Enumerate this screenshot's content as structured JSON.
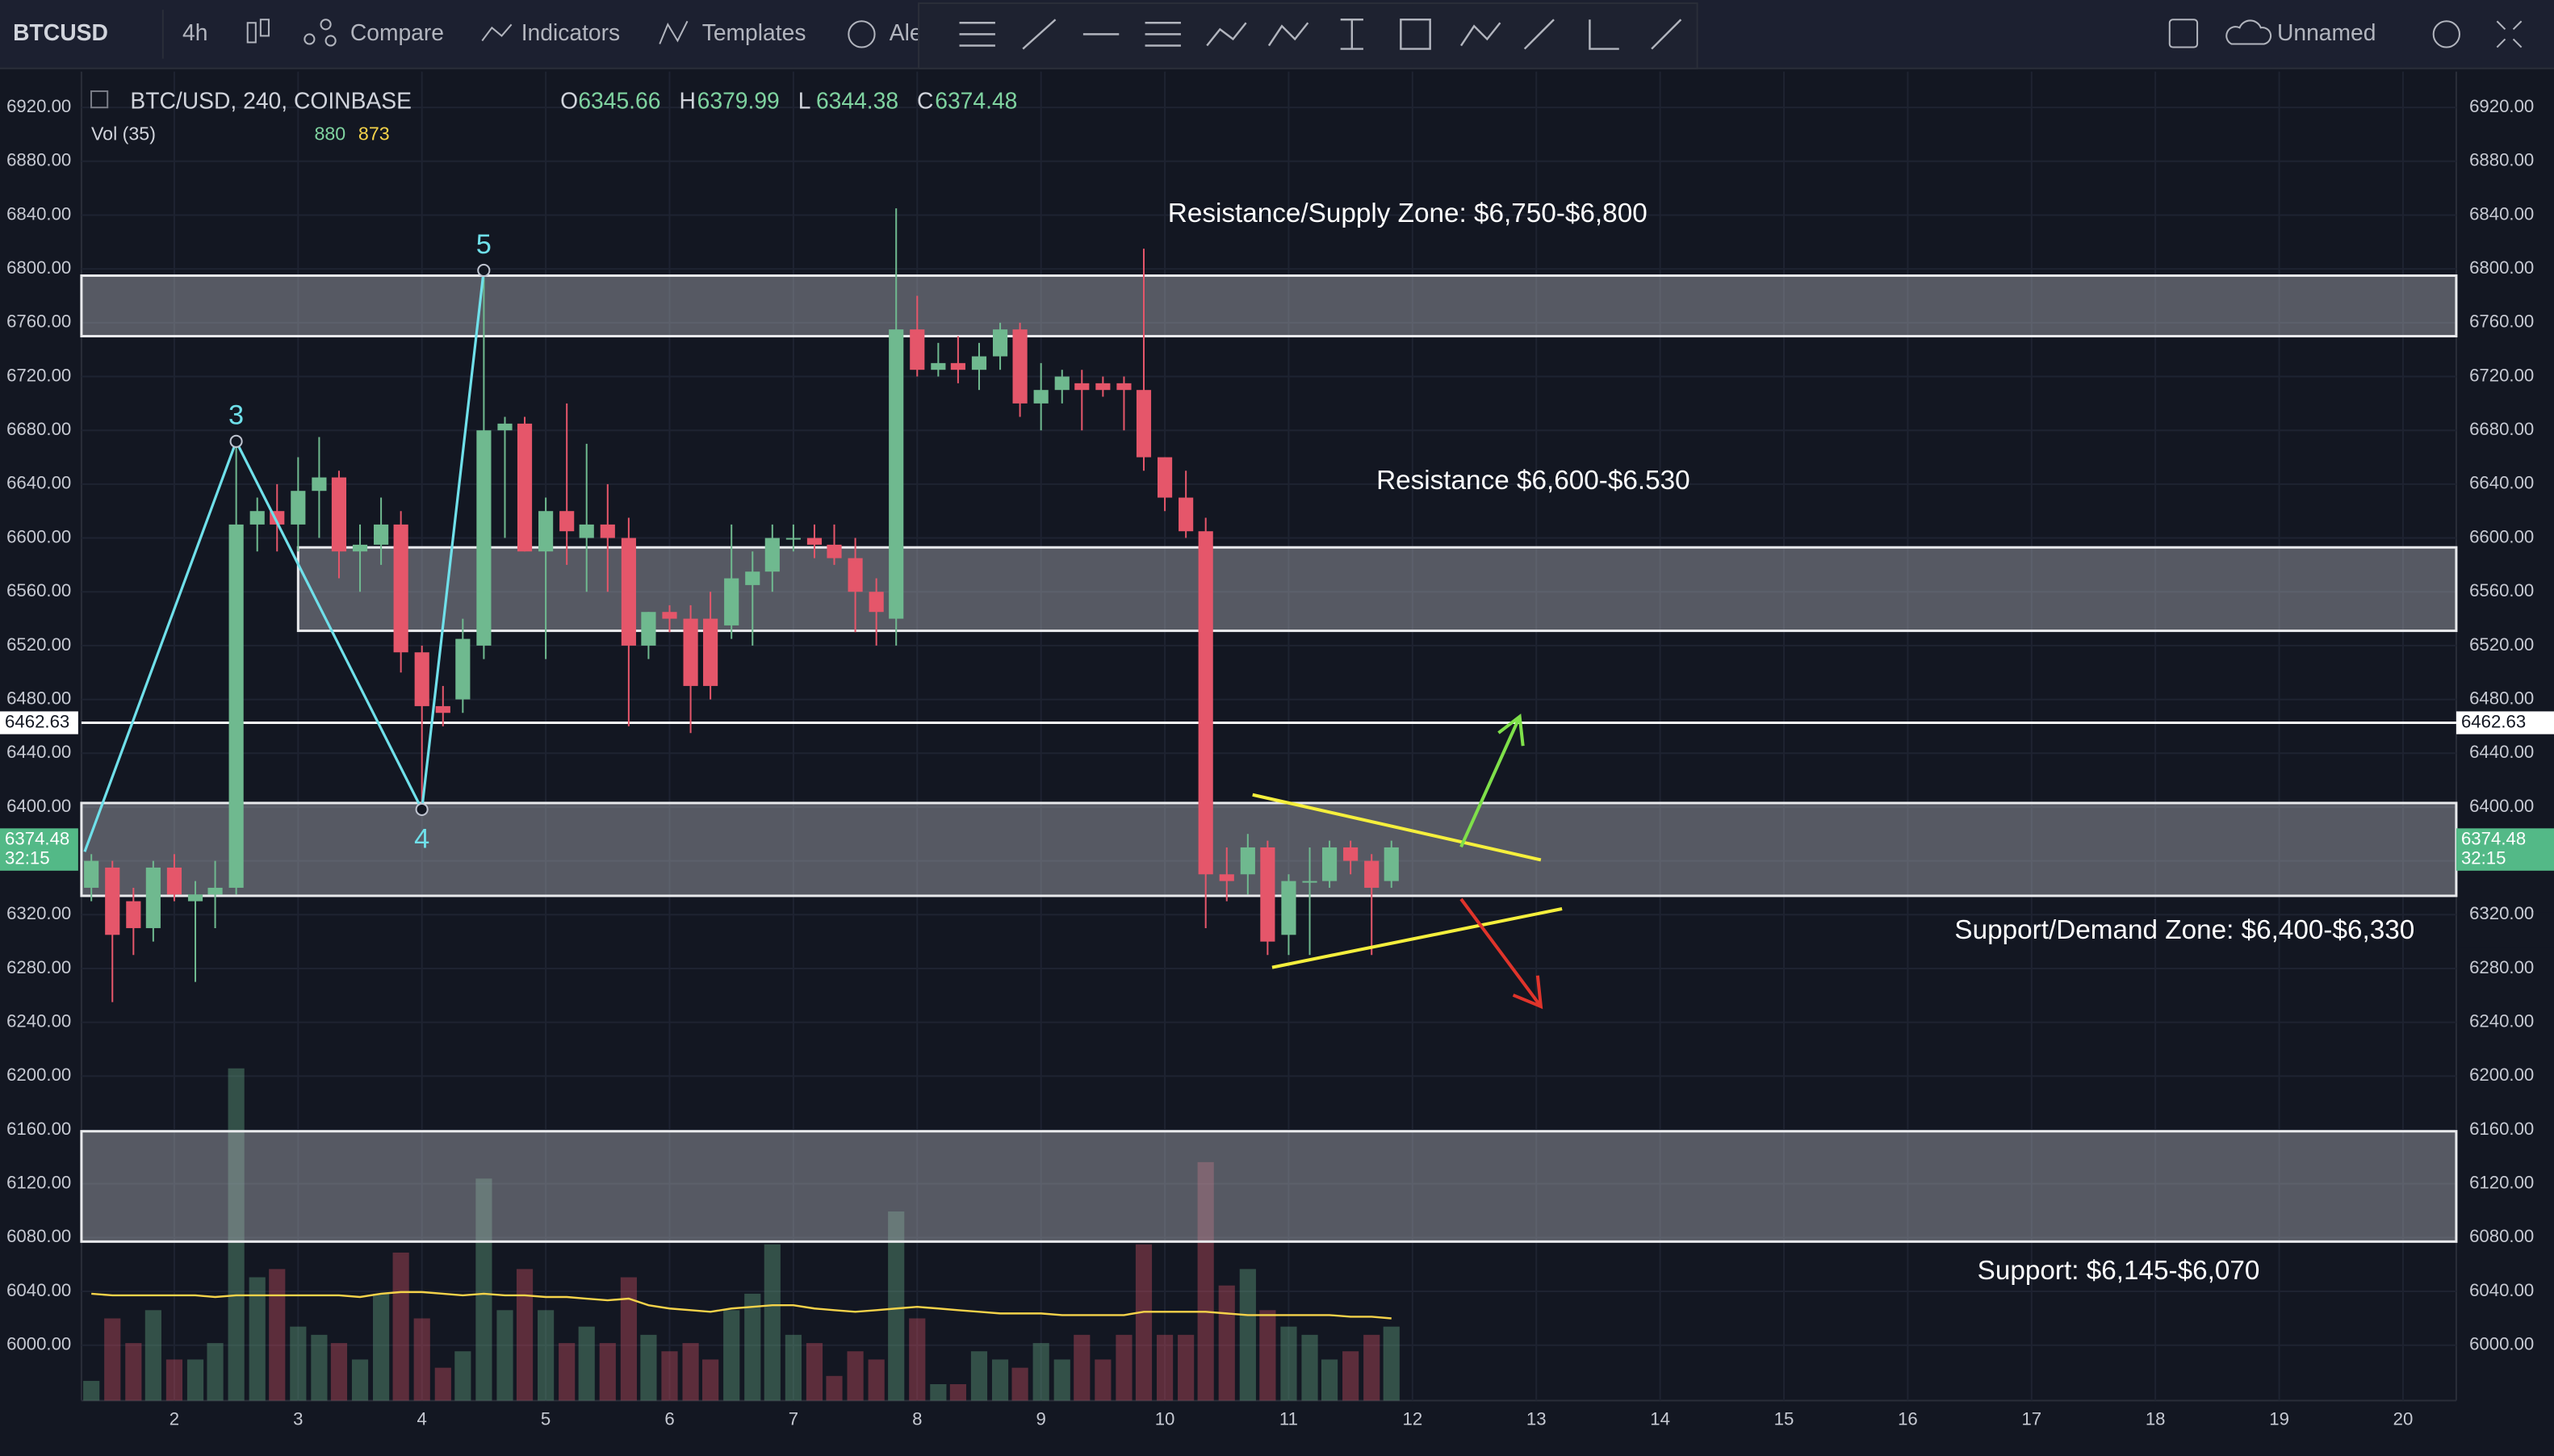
{
  "toolbar": {
    "symbol": "BTCUSD",
    "interval": "4h",
    "buttons": [
      "Compare",
      "Indicators",
      "Templates",
      "Ale"
    ],
    "layout_name": "Unnamed"
  },
  "chart_data": {
    "type": "candlestick",
    "legend": {
      "title": "BTC/USD, 240, COINBASE",
      "ohlc": [
        {
          "label": "O",
          "value": 6345.66
        },
        {
          "label": "H",
          "value": 6379.99
        },
        {
          "label": "L",
          "value": 6344.38
        },
        {
          "label": "C",
          "value": 6374.48
        }
      ],
      "volume_title": "Vol (35)",
      "volume_values": [
        880,
        873
      ]
    },
    "x": [
      1.33,
      1.5,
      1.67,
      1.83,
      2,
      2.17,
      2.33,
      2.5,
      2.67,
      2.83,
      3,
      3.17,
      3.33,
      3.5,
      3.67,
      3.83,
      4,
      4.17,
      4.33,
      4.5,
      4.67,
      4.83,
      5,
      5.17,
      5.33,
      5.5,
      5.67,
      5.83,
      6,
      6.17,
      6.33,
      6.5,
      6.67,
      6.83,
      7,
      7.17,
      7.33,
      7.5,
      7.67,
      7.83,
      8,
      8.17,
      8.33,
      8.5,
      8.67,
      8.83,
      9,
      9.17,
      9.33,
      9.5,
      9.67,
      9.83,
      10,
      10.17,
      10.33,
      10.5,
      10.67,
      10.83,
      11,
      11.17,
      11.33,
      11.5,
      11.67,
      11.83
    ],
    "open": [
      6340,
      6355,
      6330,
      6310,
      6355,
      6330,
      6335,
      6340,
      6610,
      6620,
      6610,
      6635,
      6645,
      6590,
      6595,
      6610,
      6515,
      6475,
      6480,
      6520,
      6680,
      6685,
      6590,
      6620,
      6600,
      6610,
      6600,
      6520,
      6545,
      6540,
      6540,
      6535,
      6565,
      6575,
      6600,
      6600,
      6595,
      6585,
      6560,
      6540,
      6755,
      6725,
      6730,
      6725,
      6735,
      6755,
      6700,
      6710,
      6715,
      6715,
      6715,
      6710,
      6660,
      6630,
      6605,
      6350,
      6350,
      6370,
      6305,
      6345,
      6345,
      6370,
      6360,
      6345
    ],
    "high": [
      6365,
      6360,
      6340,
      6360,
      6365,
      6345,
      6360,
      6670,
      6630,
      6640,
      6660,
      6675,
      6650,
      6610,
      6630,
      6620,
      6520,
      6490,
      6540,
      6800,
      6690,
      6690,
      6630,
      6700,
      6670,
      6640,
      6615,
      6545,
      6550,
      6550,
      6560,
      6610,
      6590,
      6610,
      6610,
      6610,
      6610,
      6600,
      6570,
      6845,
      6780,
      6745,
      6750,
      6745,
      6760,
      6760,
      6730,
      6725,
      6725,
      6720,
      6720,
      6815,
      6660,
      6650,
      6615,
      6370,
      6380,
      6375,
      6350,
      6370,
      6375,
      6375,
      6365,
      6375
    ],
    "low": [
      6330,
      6255,
      6290,
      6300,
      6330,
      6270,
      6310,
      6335,
      6590,
      6590,
      6590,
      6600,
      6570,
      6560,
      6580,
      6500,
      6400,
      6460,
      6470,
      6510,
      6600,
      6590,
      6510,
      6580,
      6560,
      6560,
      6460,
      6510,
      6530,
      6455,
      6480,
      6525,
      6520,
      6560,
      6590,
      6585,
      6580,
      6530,
      6520,
      6520,
      6720,
      6720,
      6715,
      6710,
      6725,
      6690,
      6680,
      6700,
      6680,
      6705,
      6680,
      6650,
      6620,
      6600,
      6310,
      6330,
      6335,
      6290,
      6290,
      6290,
      6340,
      6350,
      6290,
      6340
    ],
    "close": [
      6360,
      6305,
      6310,
      6355,
      6335,
      6335,
      6340,
      6610,
      6620,
      6610,
      6635,
      6645,
      6590,
      6595,
      6610,
      6515,
      6475,
      6470,
      6525,
      6680,
      6685,
      6590,
      6620,
      6605,
      6610,
      6600,
      6520,
      6545,
      6540,
      6490,
      6490,
      6570,
      6575,
      6600,
      6600,
      6595,
      6585,
      6560,
      6545,
      6755,
      6725,
      6730,
      6725,
      6735,
      6755,
      6700,
      6710,
      6720,
      6710,
      6710,
      6710,
      6660,
      6630,
      6605,
      6350,
      6345,
      6370,
      6300,
      6345,
      6345,
      6370,
      6360,
      6340,
      6370
    ],
    "volume": [
      12,
      50,
      35,
      55,
      25,
      25,
      35,
      202,
      75,
      80,
      45,
      40,
      35,
      25,
      65,
      90,
      50,
      20,
      30,
      135,
      55,
      80,
      55,
      35,
      45,
      35,
      75,
      40,
      30,
      35,
      25,
      55,
      65,
      95,
      40,
      35,
      15,
      30,
      25,
      115,
      50,
      10,
      10,
      30,
      25,
      20,
      35,
      25,
      40,
      25,
      40,
      95,
      40,
      40,
      145,
      70,
      80,
      55,
      45,
      40,
      25,
      30,
      40,
      45
    ],
    "volume_ma": [
      65,
      64,
      64,
      64,
      64,
      64,
      63,
      64,
      64,
      64,
      64,
      64,
      64,
      63,
      65,
      66,
      66,
      65,
      64,
      65,
      64,
      64,
      63,
      63,
      62,
      61,
      62,
      58,
      56,
      55,
      54,
      56,
      57,
      58,
      58,
      56,
      55,
      54,
      55,
      56,
      57,
      56,
      55,
      54,
      53,
      53,
      53,
      52,
      52,
      52,
      52,
      54,
      54,
      54,
      54,
      53,
      52,
      52,
      52,
      52,
      52,
      51,
      51,
      50
    ],
    "up_color": "#6fb98f",
    "down_color": "#e5566a",
    "ma_color": "#f5d34a",
    "xlim": [
      1.25,
      20.43
    ],
    "xticks": [
      2,
      3,
      4,
      5,
      6,
      7,
      8,
      9,
      10,
      11,
      12,
      13,
      14,
      15,
      16,
      17,
      18,
      19,
      20
    ],
    "ylim": [
      5958.8,
      6946.6
    ],
    "yticks": [
      {
        "value": 6000,
        "label": "6000.00"
      },
      {
        "value": 6040,
        "label": "6040.00"
      },
      {
        "value": 6080,
        "label": "6080.00"
      },
      {
        "value": 6120,
        "label": "6120.00"
      },
      {
        "value": 6160,
        "label": "6160.00"
      },
      {
        "value": 6200,
        "label": "6200.00"
      },
      {
        "value": 6240,
        "label": "6240.00"
      },
      {
        "value": 6280,
        "label": "6280.00"
      },
      {
        "value": 6320,
        "label": "6320.00"
      },
      {
        "value": 6360,
        "label": "6360.00"
      },
      {
        "value": 6400,
        "label": "6400.00"
      },
      {
        "value": 6440,
        "label": "6440.00"
      },
      {
        "value": 6480,
        "label": "6480.00"
      },
      {
        "value": 6520,
        "label": "6520.00"
      },
      {
        "value": 6560,
        "label": "6560.00"
      },
      {
        "value": 6600,
        "label": "6600.00"
      },
      {
        "value": 6640,
        "label": "6640.00"
      },
      {
        "value": 6680,
        "label": "6680.00"
      },
      {
        "value": 6720,
        "label": "6720.00"
      },
      {
        "value": 6760,
        "label": "6760.00"
      },
      {
        "value": 6800,
        "label": "6800.00"
      },
      {
        "value": 6840,
        "label": "6840.00"
      },
      {
        "value": 6880,
        "label": "6880.00"
      },
      {
        "value": 6920,
        "label": "6920.00"
      }
    ],
    "grid": true,
    "zones": [
      {
        "low": 6750,
        "high": 6795
      },
      {
        "low": 6531,
        "high": 6593,
        "start": 3
      },
      {
        "low": 6334,
        "high": 6403
      },
      {
        "low": 6077,
        "high": 6159
      }
    ],
    "hline": 6462.63,
    "last_price": 6374.48,
    "countdown": "32:15",
    "annotations": [
      "Resistance/Supply Zone: $6,750-$6,800",
      "Resistance $6,600-$6.530",
      "Support/Demand Zone: $6,400-$6,330",
      "Support: $6,145-$6,070"
    ],
    "wave_labels": [
      "3",
      "4",
      "5"
    ]
  }
}
